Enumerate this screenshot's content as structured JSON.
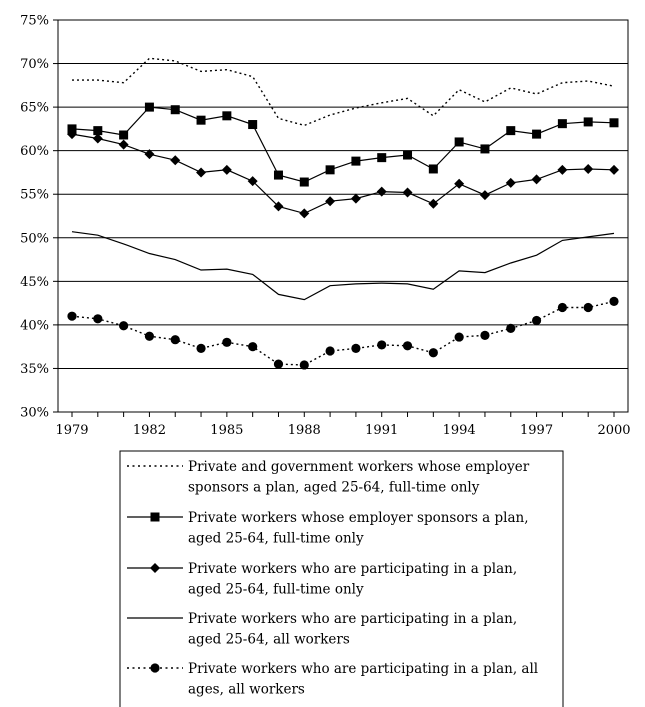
{
  "chart_data": {
    "type": "line",
    "x": [
      1979,
      1980,
      1981,
      1982,
      1983,
      1984,
      1985,
      1986,
      1987,
      1988,
      1989,
      1990,
      1991,
      1992,
      1993,
      1994,
      1995,
      1996,
      1997,
      1998,
      1999,
      2000
    ],
    "xticks": [
      "1979",
      "1982",
      "1985",
      "1988",
      "1991",
      "1994",
      "1997",
      "2000"
    ],
    "xtick_values": [
      1979,
      1982,
      1985,
      1988,
      1991,
      1994,
      1997,
      2000
    ],
    "xlim": [
      1979,
      2000
    ],
    "ylim": [
      30,
      75
    ],
    "yticks": [
      "30%",
      "35%",
      "40%",
      "45%",
      "50%",
      "55%",
      "60%",
      "65%",
      "70%",
      "75%"
    ],
    "ytick_values": [
      30,
      35,
      40,
      45,
      50,
      55,
      60,
      65,
      70,
      75
    ],
    "grid": "horizontal",
    "legend_position": "bottom",
    "series": [
      {
        "name": "Private and government workers whose employer sponsors a plan, aged 25-64, full-time only",
        "legend_lines": [
          "Private and government workers whose employer",
          "sponsors a plan, aged 25-64, full-time only"
        ],
        "style": "dotted",
        "marker": "none",
        "values": [
          68.1,
          68.1,
          67.8,
          70.6,
          70.3,
          69.1,
          69.3,
          68.5,
          63.7,
          62.9,
          64.1,
          64.9,
          65.5,
          66.0,
          64.0,
          67.0,
          65.6,
          67.2,
          66.5,
          67.8,
          68.0,
          67.4
        ]
      },
      {
        "name": "Private workers whose employer sponsors a plan, aged 25-64, full-time only",
        "legend_lines": [
          "Private workers whose employer sponsors a plan,",
          "aged 25-64, full-time only"
        ],
        "style": "solid",
        "marker": "square",
        "values": [
          62.5,
          62.3,
          61.8,
          65.0,
          64.7,
          63.5,
          64.0,
          63.0,
          57.2,
          56.4,
          57.8,
          58.8,
          59.2,
          59.5,
          57.9,
          61.0,
          60.2,
          62.3,
          61.9,
          63.1,
          63.3,
          63.2
        ]
      },
      {
        "name": "Private workers who are participating in a plan, aged 25-64, full-time only",
        "legend_lines": [
          "Private workers who are participating in a plan,",
          "aged 25-64, full-time only"
        ],
        "style": "solid",
        "marker": "diamond",
        "values": [
          61.9,
          61.4,
          60.7,
          59.6,
          58.9,
          57.5,
          57.8,
          56.5,
          53.6,
          52.8,
          54.2,
          54.5,
          55.3,
          55.2,
          53.9,
          56.2,
          54.9,
          56.3,
          56.7,
          57.8,
          57.9,
          57.8
        ]
      },
      {
        "name": "Private workers who are participating in a plan, aged 25-64, all workers",
        "legend_lines": [
          "Private workers who are participating in a plan,",
          "aged 25-64, all workers"
        ],
        "style": "solid",
        "marker": "none",
        "values": [
          50.7,
          50.3,
          49.3,
          48.2,
          47.5,
          46.3,
          46.4,
          45.8,
          43.5,
          42.9,
          44.5,
          44.7,
          44.8,
          44.7,
          44.1,
          46.2,
          46.0,
          47.1,
          48.0,
          49.7,
          50.1,
          50.5
        ]
      },
      {
        "name": "Private workers who are participating in a plan, all ages, all workers",
        "legend_lines": [
          "Private workers who are participating in a plan, all",
          "ages, all workers"
        ],
        "style": "dotted",
        "marker": "circle",
        "values": [
          41.0,
          40.7,
          39.9,
          38.7,
          38.3,
          37.3,
          38.0,
          37.5,
          35.5,
          35.4,
          37.0,
          37.3,
          37.7,
          37.6,
          36.8,
          38.6,
          38.8,
          39.6,
          40.5,
          42.0,
          42.0,
          42.7
        ]
      }
    ]
  }
}
